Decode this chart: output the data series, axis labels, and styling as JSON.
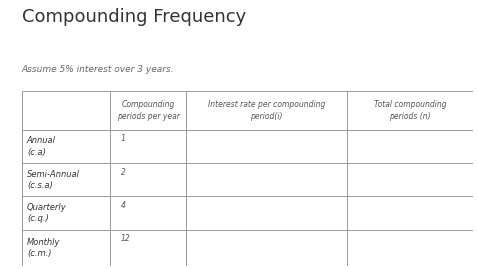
{
  "title": "Compounding Frequency",
  "subtitle": "Assume 5% interest over 3 years.",
  "col_headers": [
    "Compounding\nperiods per year",
    "Interest rate per compounding\nperiod(i)",
    "Total compounding\nperiods (n)"
  ],
  "row_labels": [
    "Annual\n(c.a)",
    "Semi-Annual\n(c.s.a)",
    "Quarterly\n(c.q.)",
    "Monthly\n(c.m.)"
  ],
  "col2_values": [
    "1",
    "2",
    "4",
    "12"
  ],
  "background_color": "#ffffff",
  "title_color": "#333333",
  "subtitle_color": "#666666",
  "header_text_color": "#555555",
  "row_label_color": "#333333",
  "value_color": "#555555",
  "grid_color": "#999999"
}
